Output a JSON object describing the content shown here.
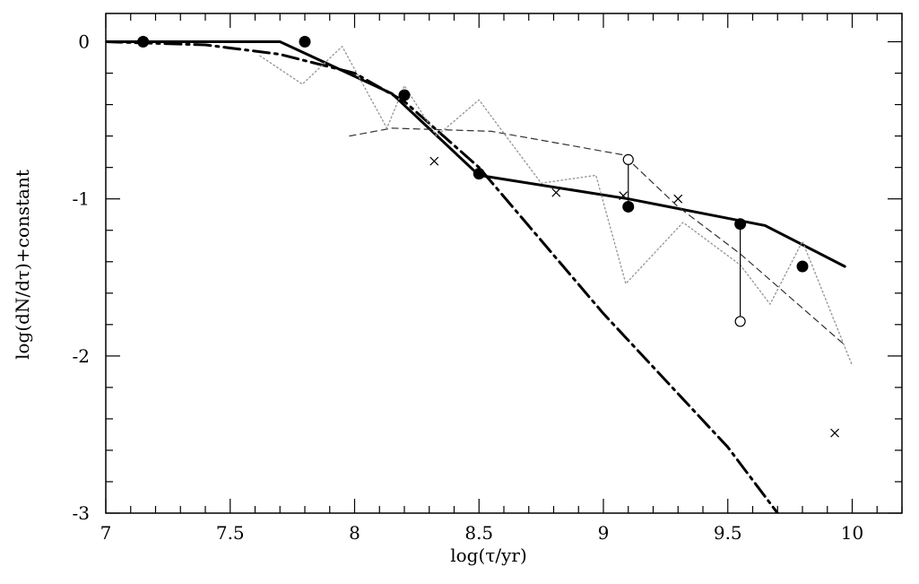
{
  "chart_data": {
    "type": "line",
    "xlabel": "log(τ/yr)",
    "ylabel": "log(dN/dτ)+constant",
    "xlim": [
      7,
      10.2
    ],
    "ylim": [
      -3,
      0.18
    ],
    "x_ticks": [
      "7",
      "7.5",
      "8",
      "8.5",
      "9",
      "9.5",
      "10"
    ],
    "y_ticks": [
      "0",
      "-1",
      "-2",
      "-3"
    ],
    "x_tick_values": [
      7,
      7.5,
      8,
      8.5,
      9,
      9.5,
      10
    ],
    "y_tick_values": [
      0,
      -1,
      -2,
      -3
    ],
    "grid": false,
    "series": [
      {
        "style": "solid-thick",
        "color": "#000000",
        "points": [
          [
            7.0,
            0.0
          ],
          [
            7.7,
            0.0
          ],
          [
            8.15,
            -0.33
          ],
          [
            8.5,
            -0.85
          ],
          [
            9.1,
            -1.0
          ],
          [
            9.65,
            -1.17
          ],
          [
            9.97,
            -1.43
          ]
        ]
      },
      {
        "style": "dash-dot",
        "color": "#000000",
        "points": [
          [
            7.0,
            0.0
          ],
          [
            7.4,
            -0.02
          ],
          [
            7.7,
            -0.08
          ],
          [
            8.0,
            -0.2
          ],
          [
            8.2,
            -0.38
          ],
          [
            8.5,
            -0.8
          ],
          [
            9.0,
            -1.73
          ],
          [
            9.5,
            -2.58
          ],
          [
            9.7,
            -3.0
          ]
        ]
      },
      {
        "style": "dashed",
        "color": "#333333",
        "points": [
          [
            7.98,
            -0.6
          ],
          [
            8.15,
            -0.55
          ],
          [
            8.55,
            -0.57
          ],
          [
            9.08,
            -0.72
          ],
          [
            9.3,
            -1.05
          ],
          [
            9.55,
            -1.35
          ],
          [
            9.97,
            -1.93
          ]
        ]
      },
      {
        "style": "dotted",
        "color": "#999999",
        "points": [
          [
            7.62,
            -0.09
          ],
          [
            7.79,
            -0.27
          ],
          [
            7.95,
            -0.03
          ],
          [
            8.13,
            -0.55
          ],
          [
            8.2,
            -0.28
          ],
          [
            8.33,
            -0.6
          ],
          [
            8.5,
            -0.37
          ],
          [
            8.75,
            -0.9
          ],
          [
            8.97,
            -0.85
          ],
          [
            9.09,
            -1.54
          ],
          [
            9.32,
            -1.15
          ],
          [
            9.55,
            -1.42
          ],
          [
            9.67,
            -1.67
          ],
          [
            9.8,
            -1.27
          ],
          [
            10.0,
            -2.06
          ]
        ]
      }
    ],
    "markers_filled_circle": [
      [
        7.15,
        0.0
      ],
      [
        7.8,
        0.0
      ],
      [
        8.2,
        -0.34
      ],
      [
        8.5,
        -0.84
      ],
      [
        9.1,
        -1.05
      ],
      [
        9.55,
        -1.16
      ],
      [
        9.8,
        -1.43
      ]
    ],
    "markers_open_circle": [
      [
        9.1,
        -0.75
      ],
      [
        9.55,
        -1.78
      ]
    ],
    "error_links": [
      [
        9.1,
        -0.75,
        -1.05
      ],
      [
        9.55,
        -1.16,
        -1.78
      ]
    ],
    "markers_cross": [
      [
        8.32,
        -0.76
      ],
      [
        8.81,
        -0.96
      ],
      [
        9.08,
        -0.98
      ],
      [
        9.3,
        -1.0
      ],
      [
        9.93,
        -2.49
      ]
    ]
  }
}
